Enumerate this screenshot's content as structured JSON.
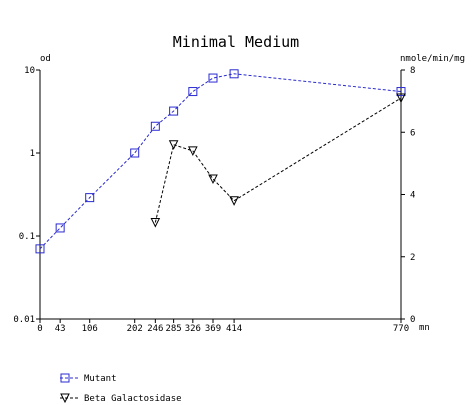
{
  "chart_data": {
    "type": "line",
    "title": "Minimal Medium",
    "left_axis_unit": "od",
    "right_axis_unit": "nmole/min/mg",
    "x_unit": "mn",
    "x_ticks": [
      0,
      43,
      106,
      202,
      246,
      285,
      326,
      369,
      414,
      770
    ],
    "x_range": [
      0,
      770
    ],
    "left_scale": "log",
    "left_range": [
      0.01,
      10
    ],
    "left_ticks": [
      {
        "value": 0.01,
        "label": "0.01"
      },
      {
        "value": 0.1,
        "label": "0.1"
      },
      {
        "value": 1,
        "label": "1"
      },
      {
        "value": 10,
        "label": "10"
      }
    ],
    "right_scale": "linear",
    "right_range": [
      0,
      8
    ],
    "right_ticks": [
      {
        "value": 0,
        "label": "0"
      },
      {
        "value": 2,
        "label": "2"
      },
      {
        "value": 4,
        "label": "4"
      },
      {
        "value": 6,
        "label": "6"
      },
      {
        "value": 8,
        "label": "8"
      }
    ],
    "grid": false,
    "legend_position": "bottom-left",
    "series": [
      {
        "name": "Mutant",
        "axis": "left",
        "marker": "square",
        "color": "#2a2ad0",
        "x": [
          0,
          43,
          106,
          202,
          246,
          285,
          326,
          369,
          414,
          770
        ],
        "y": [
          0.07,
          0.125,
          0.29,
          1.0,
          2.1,
          3.2,
          5.5,
          8.0,
          9.0,
          5.5
        ]
      },
      {
        "name": "Beta Galactosidase",
        "axis": "right",
        "marker": "triangle-down",
        "color": "#000000",
        "x": [
          246,
          285,
          326,
          369,
          414,
          770
        ],
        "y": [
          3.1,
          5.6,
          5.4,
          4.5,
          3.8,
          7.1
        ]
      }
    ]
  }
}
